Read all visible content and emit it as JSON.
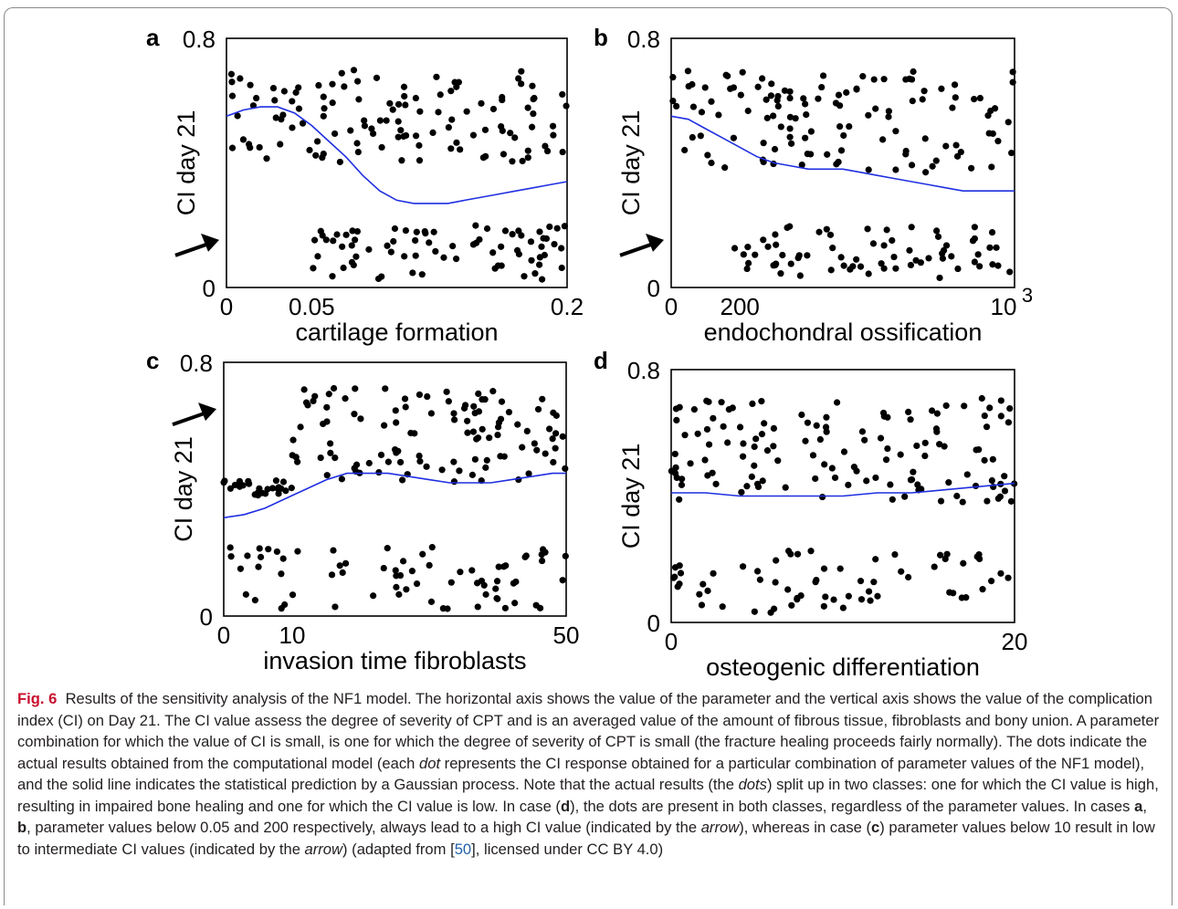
{
  "chart_data": [
    {
      "panel": "a",
      "type": "scatter",
      "xlabel": "cartilage formation",
      "ylabel": "CI day 21",
      "xlim": [
        0,
        0.2
      ],
      "ylim": [
        0,
        0.8
      ],
      "xticks": [
        {
          "v": 0,
          "t": "0"
        },
        {
          "v": 0.05,
          "t": "0.05"
        },
        {
          "v": 0.2,
          "t": "0.2"
        }
      ],
      "yticks": [
        {
          "v": 0,
          "t": "0"
        },
        {
          "v": 0.8,
          "t": "0.8"
        }
      ],
      "arrow": {
        "x": 0,
        "y": 0.15,
        "dir": "right"
      },
      "line": [
        [
          0,
          0.55
        ],
        [
          0.01,
          0.57
        ],
        [
          0.02,
          0.58
        ],
        [
          0.03,
          0.58
        ],
        [
          0.04,
          0.56
        ],
        [
          0.05,
          0.52
        ],
        [
          0.06,
          0.47
        ],
        [
          0.07,
          0.42
        ],
        [
          0.08,
          0.36
        ],
        [
          0.09,
          0.31
        ],
        [
          0.1,
          0.28
        ],
        [
          0.11,
          0.27
        ],
        [
          0.12,
          0.27
        ],
        [
          0.13,
          0.27
        ],
        [
          0.14,
          0.28
        ],
        [
          0.15,
          0.29
        ],
        [
          0.16,
          0.3
        ],
        [
          0.17,
          0.31
        ],
        [
          0.18,
          0.32
        ],
        [
          0.19,
          0.33
        ],
        [
          0.2,
          0.34
        ]
      ],
      "points": []
    },
    {
      "panel": "b",
      "type": "scatter",
      "xlabel": "endochondral ossification",
      "ylabel": "CI day 21",
      "xlim": [
        0,
        1000
      ],
      "ylim": [
        0,
        0.8
      ],
      "xticks": [
        {
          "v": 0,
          "t": "0"
        },
        {
          "v": 200,
          "t": "200"
        }
      ],
      "ytick_top": "0.8",
      "ytick_bottom": "0",
      "xtick_max": "10",
      "xtick_max_exp": "3",
      "yticks": [
        {
          "v": 0,
          "t": "0"
        },
        {
          "v": 0.8,
          "t": "0.8"
        }
      ],
      "arrow": {
        "x": 0,
        "y": 0.15,
        "dir": "right"
      },
      "line": [
        [
          0,
          0.55
        ],
        [
          50,
          0.54
        ],
        [
          100,
          0.51
        ],
        [
          150,
          0.48
        ],
        [
          200,
          0.45
        ],
        [
          250,
          0.42
        ],
        [
          300,
          0.4
        ],
        [
          350,
          0.39
        ],
        [
          400,
          0.38
        ],
        [
          450,
          0.38
        ],
        [
          500,
          0.38
        ],
        [
          550,
          0.37
        ],
        [
          600,
          0.36
        ],
        [
          650,
          0.35
        ],
        [
          700,
          0.34
        ],
        [
          750,
          0.33
        ],
        [
          800,
          0.32
        ],
        [
          850,
          0.31
        ],
        [
          900,
          0.31
        ],
        [
          950,
          0.31
        ],
        [
          1000,
          0.31
        ]
      ],
      "points": []
    },
    {
      "panel": "c",
      "type": "scatter",
      "xlabel": "invasion time fibroblasts",
      "ylabel": "CI day 21",
      "xlim": [
        0,
        50
      ],
      "ylim": [
        0,
        0.8
      ],
      "xticks": [
        {
          "v": 0,
          "t": "0"
        },
        {
          "v": 10,
          "t": "10"
        },
        {
          "v": 50,
          "t": "50"
        }
      ],
      "yticks": [
        {
          "v": 0,
          "t": "0"
        },
        {
          "v": 0.8,
          "t": "0.8"
        }
      ],
      "arrow": {
        "x": 0,
        "y": 0.65,
        "dir": "right"
      },
      "line": [
        [
          0,
          0.31
        ],
        [
          3,
          0.32
        ],
        [
          6,
          0.34
        ],
        [
          9,
          0.37
        ],
        [
          12,
          0.4
        ],
        [
          15,
          0.43
        ],
        [
          18,
          0.45
        ],
        [
          21,
          0.45
        ],
        [
          24,
          0.45
        ],
        [
          27,
          0.44
        ],
        [
          30,
          0.43
        ],
        [
          33,
          0.42
        ],
        [
          36,
          0.42
        ],
        [
          39,
          0.42
        ],
        [
          42,
          0.43
        ],
        [
          45,
          0.44
        ],
        [
          48,
          0.45
        ],
        [
          50,
          0.45
        ]
      ],
      "points": []
    },
    {
      "panel": "d",
      "type": "scatter",
      "xlabel": "osteogenic differentiation",
      "ylabel": "CI day 21",
      "xlim": [
        0,
        20
      ],
      "ylim": [
        0,
        0.8
      ],
      "xticks": [
        {
          "v": 0,
          "t": "0"
        },
        {
          "v": 20,
          "t": "20"
        }
      ],
      "yticks": [
        {
          "v": 0,
          "t": "0"
        },
        {
          "v": 0.8,
          "t": "0.8"
        }
      ],
      "line": [
        [
          0,
          0.41
        ],
        [
          2,
          0.41
        ],
        [
          4,
          0.4
        ],
        [
          6,
          0.4
        ],
        [
          8,
          0.4
        ],
        [
          10,
          0.4
        ],
        [
          12,
          0.41
        ],
        [
          14,
          0.41
        ],
        [
          16,
          0.42
        ],
        [
          18,
          0.43
        ],
        [
          20,
          0.44
        ]
      ],
      "points": []
    }
  ],
  "caption": {
    "fig_label": "Fig. 6",
    "text_1": "Results of the sensitivity analysis of the NF1 model. The horizontal axis shows the value of the parameter and the vertical axis shows the value of the complication index (CI) on Day 21. The CI value assess the degree of severity of CPT and is an averaged value of the amount of fibrous tissue, fibroblasts and bony union. A parameter combination for which the value of CI is small, is one for which the degree of severity of CPT is small (the fracture healing proceeds fairly normally). The dots indicate the actual results obtained from the computational model (each ",
    "dot": "dot",
    "text_2": " represents the CI response obtained for a particular combination of parameter values of the NF1 model), and the solid line indicates the statistical prediction by a Gaussian process. Note that the actual results (the ",
    "dots": "dots",
    "text_3": ") split up in two classes: one for which the CI value is high, resulting in impaired bone healing and one for which the CI value is low. In case (",
    "d": "d",
    "text_4": "), the dots are present in both classes, regardless of the parameter values. In cases ",
    "a": "a",
    "sep1": ", ",
    "b": "b",
    "text_5": ", parameter values below 0.05 and 200 respectively, always lead to a high CI value (indicated by the ",
    "arrow1": "arrow",
    "text_6": "), whereas in case (",
    "c": "c",
    "text_7": ") parameter values below 10 result in low to intermediate CI values (indicated by the ",
    "arrow2": "arrow",
    "text_8": ") (adapted from [",
    "ref": "50",
    "text_9": "], licensed under CC BY 4.0)"
  },
  "colors": {
    "line": "#1f2fe0",
    "dot": "#000000",
    "fig_label": "#c8102e",
    "link": "#1f5fa8"
  }
}
